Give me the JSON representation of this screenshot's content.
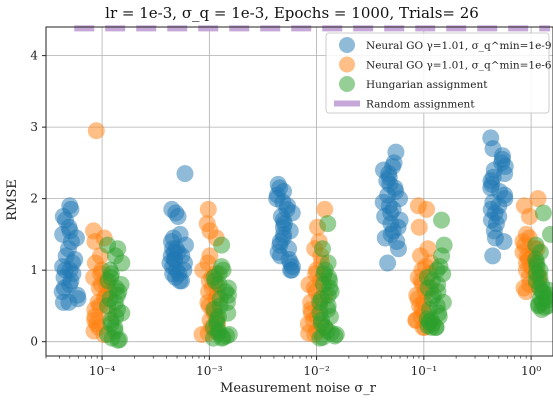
{
  "chart_data": {
    "type": "scatter",
    "title": "lr = 1e-3, σ_q = 1e-3, Epochs = 1000, Trials= 26",
    "xlabel": "Measurement noise σ_r",
    "ylabel": "RMSE",
    "xscale": "log",
    "xlim": [
      3e-05,
      1.6
    ],
    "ylim": [
      -0.2,
      4.4
    ],
    "yticks": [
      0,
      1,
      2,
      3,
      4
    ],
    "xticks": [
      0.0001,
      0.001,
      0.01,
      0.1,
      1
    ],
    "xtick_labels": [
      "10⁻⁴",
      "10⁻³",
      "10⁻²",
      "10⁻¹",
      "10⁰"
    ],
    "grid": true,
    "legend_position": "upper right",
    "noise_levels": [
      0.0001,
      0.001,
      0.01,
      0.1,
      1
    ],
    "series": [
      {
        "name": "Neural GO γ=1.01, σ_q^min=1e-9",
        "color": "#1f77b4",
        "offset": -0.3,
        "values": [
          [
            1.9,
            1.85,
            1.75,
            1.7,
            1.6,
            1.55,
            1.5,
            1.45,
            1.4,
            1.3,
            1.2,
            1.15,
            1.1,
            1.05,
            1.0,
            1.0,
            0.95,
            0.9,
            0.85,
            0.8,
            0.75,
            0.7,
            0.65,
            0.6,
            0.55,
            0.55
          ],
          [
            2.35,
            1.85,
            1.8,
            1.75,
            1.5,
            1.45,
            1.4,
            1.35,
            1.3,
            1.3,
            1.25,
            1.25,
            1.2,
            1.2,
            1.15,
            1.15,
            1.1,
            1.1,
            1.05,
            1.0,
            1.0,
            0.95,
            0.95,
            0.9,
            0.85,
            0.85
          ],
          [
            2.2,
            2.15,
            2.1,
            2.05,
            2.0,
            1.95,
            1.9,
            1.85,
            1.8,
            1.75,
            1.7,
            1.65,
            1.6,
            1.55,
            1.5,
            1.45,
            1.4,
            1.35,
            1.3,
            1.25,
            1.2,
            1.15,
            1.1,
            1.05,
            1.0,
            1.0
          ],
          [
            2.65,
            2.5,
            2.45,
            2.4,
            2.35,
            2.3,
            2.25,
            2.2,
            2.15,
            2.1,
            2.05,
            2.0,
            1.95,
            1.9,
            1.85,
            1.8,
            1.75,
            1.7,
            1.65,
            1.6,
            1.55,
            1.5,
            1.45,
            1.4,
            1.3,
            1.1
          ],
          [
            2.85,
            2.7,
            2.6,
            2.55,
            2.5,
            2.45,
            2.4,
            2.35,
            2.3,
            2.25,
            2.2,
            2.15,
            2.1,
            2.05,
            2.0,
            1.95,
            1.9,
            1.85,
            1.8,
            1.75,
            1.7,
            1.65,
            1.55,
            1.45,
            1.4,
            1.2
          ]
        ]
      },
      {
        "name": "Neural GO γ=1.01, σ_q^min=1e-6",
        "color": "#ff7f0e",
        "offset": 0.0,
        "values": [
          [
            2.95,
            1.55,
            1.45,
            1.4,
            1.2,
            1.1,
            1.0,
            0.95,
            0.9,
            0.85,
            0.8,
            0.8,
            0.75,
            0.7,
            0.65,
            0.6,
            0.55,
            0.5,
            0.45,
            0.4,
            0.35,
            0.3,
            0.25,
            0.2,
            0.15,
            0.1
          ],
          [
            1.85,
            1.65,
            1.55,
            1.45,
            1.2,
            1.1,
            1.0,
            0.95,
            0.9,
            0.85,
            0.8,
            0.75,
            0.7,
            0.65,
            0.6,
            0.55,
            0.5,
            0.45,
            0.4,
            0.35,
            0.3,
            0.25,
            0.2,
            0.15,
            0.12,
            0.1
          ],
          [
            1.85,
            1.6,
            1.4,
            1.3,
            1.2,
            1.1,
            1.0,
            0.95,
            0.9,
            0.85,
            0.8,
            0.75,
            0.7,
            0.65,
            0.6,
            0.55,
            0.5,
            0.45,
            0.4,
            0.35,
            0.3,
            0.25,
            0.2,
            0.15,
            0.12,
            0.1
          ],
          [
            1.9,
            1.85,
            1.6,
            1.3,
            1.2,
            1.1,
            1.05,
            1.0,
            0.95,
            0.9,
            0.85,
            0.8,
            0.75,
            0.7,
            0.65,
            0.6,
            0.55,
            0.5,
            0.45,
            0.4,
            0.35,
            0.3,
            0.3,
            0.25,
            0.2,
            0.2
          ],
          [
            2.0,
            1.9,
            1.75,
            1.5,
            1.45,
            1.4,
            1.35,
            1.3,
            1.3,
            1.25,
            1.2,
            1.2,
            1.15,
            1.1,
            1.1,
            1.05,
            1.0,
            1.0,
            0.95,
            0.9,
            0.9,
            0.85,
            0.8,
            0.8,
            0.75,
            0.7
          ]
        ]
      },
      {
        "name": "Hungarian assignment",
        "color": "#2ca02c",
        "offset": 0.11,
        "values": [
          [
            1.35,
            1.3,
            1.2,
            1.1,
            1.0,
            0.95,
            0.9,
            0.85,
            0.8,
            0.75,
            0.7,
            0.65,
            0.6,
            0.55,
            0.5,
            0.45,
            0.4,
            0.35,
            0.3,
            0.25,
            0.2,
            0.15,
            0.1,
            0.05,
            0.03,
            0.02
          ],
          [
            1.35,
            1.05,
            1.0,
            0.95,
            0.9,
            0.85,
            0.8,
            0.75,
            0.7,
            0.65,
            0.6,
            0.55,
            0.5,
            0.45,
            0.4,
            0.35,
            0.3,
            0.25,
            0.2,
            0.15,
            0.12,
            0.1,
            0.08,
            0.06,
            0.05,
            0.05
          ],
          [
            1.65,
            1.3,
            1.1,
            1.0,
            0.95,
            0.9,
            0.85,
            0.8,
            0.75,
            0.7,
            0.65,
            0.6,
            0.55,
            0.5,
            0.45,
            0.4,
            0.35,
            0.3,
            0.25,
            0.2,
            0.15,
            0.12,
            0.1,
            0.08,
            0.06,
            0.05
          ],
          [
            1.7,
            1.35,
            1.2,
            1.05,
            1.0,
            0.95,
            0.9,
            0.85,
            0.8,
            0.75,
            0.7,
            0.65,
            0.6,
            0.55,
            0.5,
            0.45,
            0.4,
            0.35,
            0.32,
            0.3,
            0.28,
            0.25,
            0.22,
            0.2,
            0.2,
            0.2
          ],
          [
            1.8,
            1.5,
            1.35,
            1.25,
            1.15,
            1.1,
            1.05,
            1.0,
            0.95,
            0.9,
            0.85,
            0.8,
            0.75,
            0.72,
            0.7,
            0.68,
            0.65,
            0.62,
            0.6,
            0.58,
            0.55,
            0.52,
            0.5,
            0.5,
            0.48,
            0.45
          ]
        ]
      },
      {
        "name": "Random assignment",
        "color": "#c5a8d8",
        "type": "hline",
        "y": 4.38
      }
    ]
  }
}
